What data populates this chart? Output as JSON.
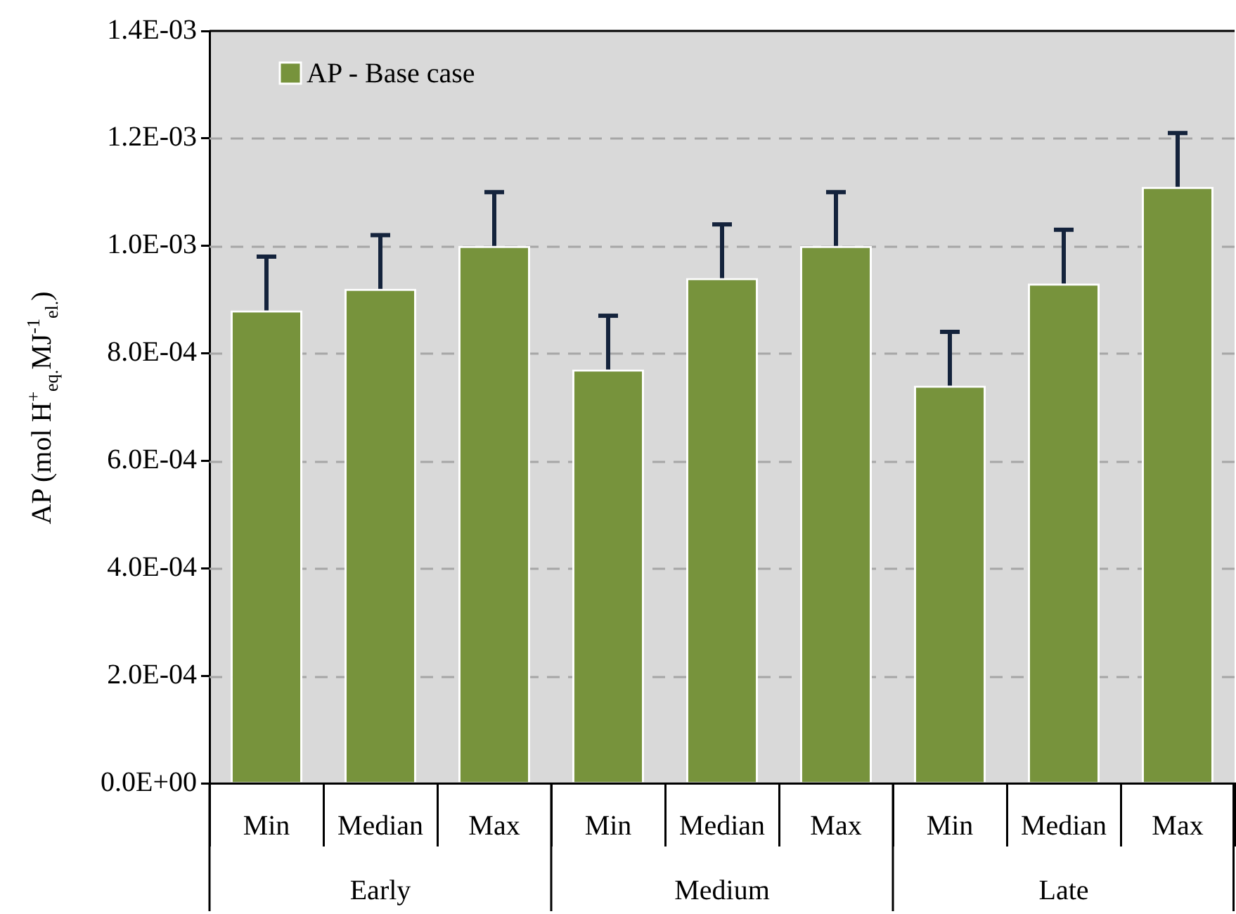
{
  "chart_data": {
    "type": "bar",
    "categories": [
      "Min",
      "Median",
      "Max",
      "Min",
      "Median",
      "Max",
      "Min",
      "Median",
      "Max"
    ],
    "annotations": [
      "Early",
      "Medium",
      "Late"
    ],
    "series": [
      {
        "name": "AP - Base case",
        "color": "#77933c",
        "values": [
          0.00088,
          0.00092,
          0.001,
          0.00077,
          0.00094,
          0.001,
          0.00074,
          0.00093,
          0.00111
        ],
        "errors": [
          [
            0.00088,
            0.00098
          ],
          [
            0.00092,
            0.00102
          ],
          [
            0.001,
            0.0011
          ],
          [
            0.00077,
            0.00087
          ],
          [
            0.00094,
            0.00104
          ],
          [
            0.001,
            0.0011
          ],
          [
            0.00074,
            0.00084
          ],
          [
            0.00093,
            0.00103
          ],
          [
            0.00111,
            0.00121
          ]
        ]
      }
    ],
    "ylabel": "AP (mol H$^{+}$$_{eq.}$MJ$^{-1}$$_{el.}$)",
    "ylim": [
      0,
      0.0014
    ],
    "yticks": [
      {
        "value": 0,
        "label": "0.0E+00"
      },
      {
        "value": 0.0002,
        "label": "2.0E-04"
      },
      {
        "value": 0.0004,
        "label": "4.0E-04"
      },
      {
        "value": 0.0006,
        "label": "6.0E-04"
      },
      {
        "value": 0.0008,
        "label": "8.0E-04"
      },
      {
        "value": 0.001,
        "label": "1.0E-03"
      },
      {
        "value": 0.0012,
        "label": "1.2E-03"
      },
      {
        "value": 0.0014,
        "label": "1.4E-03"
      }
    ],
    "grid": "y",
    "legend": "top left"
  }
}
